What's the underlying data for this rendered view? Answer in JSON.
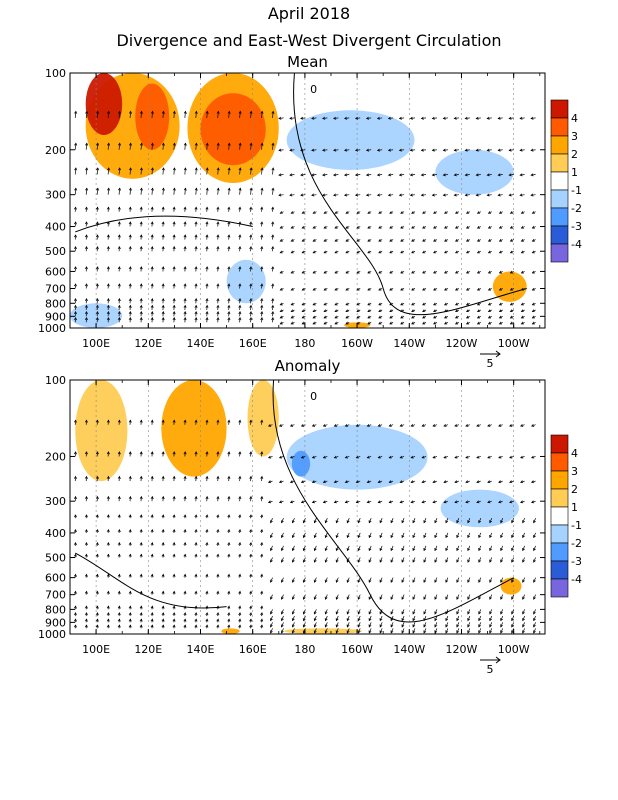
{
  "title": "April 2018",
  "subtitle": "Divergence and East-West Divergent Circulation",
  "chart_data": [
    {
      "type": "heatmap",
      "title": "Mean",
      "x_ticks": [
        "100E",
        "120E",
        "140E",
        "160E",
        "180",
        "160W",
        "140W",
        "120W",
        "100W"
      ],
      "x_tick_lon": [
        100,
        120,
        140,
        160,
        180,
        200,
        220,
        240,
        260
      ],
      "xlim_lon": [
        90,
        272
      ],
      "y_ticks": [
        "100",
        "200",
        "300",
        "400",
        "500",
        "600",
        "700",
        "800",
        "900",
        "1000"
      ],
      "y_tick_hpa": [
        100,
        200,
        300,
        400,
        500,
        600,
        700,
        800,
        900,
        1000
      ],
      "ylim_hpa": [
        100,
        1000
      ],
      "contour_label": "0",
      "vector_ref_label": "5",
      "colorbar_levels": [
        "4",
        "3",
        "2",
        "1",
        "-1",
        "-2",
        "-3",
        "-4"
      ],
      "colors": [
        "#cc1800",
        "#ff5a00",
        "#ffa500",
        "#ffcc55",
        "#ffffff",
        "#a6d2ff",
        "#4f9bff",
        "#2a5cd8",
        "#7766dd"
      ],
      "shaded_regions": [
        {
          "lon": [
            96,
            132
          ],
          "hpa": [
            100,
            260
          ],
          "level": 2
        },
        {
          "lon": [
            96,
            110
          ],
          "hpa": [
            100,
            175
          ],
          "level": 4
        },
        {
          "lon": [
            115,
            128
          ],
          "hpa": [
            110,
            200
          ],
          "level": 3
        },
        {
          "lon": [
            135,
            170
          ],
          "hpa": [
            100,
            270
          ],
          "level": 2
        },
        {
          "lon": [
            140,
            165
          ],
          "hpa": [
            120,
            230
          ],
          "level": 3
        },
        {
          "lon": [
            173,
            222
          ],
          "hpa": [
            140,
            240
          ],
          "level": -1
        },
        {
          "lon": [
            230,
            260
          ],
          "hpa": [
            200,
            300
          ],
          "level": -1
        },
        {
          "lon": [
            90,
            110
          ],
          "hpa": [
            800,
            1000
          ],
          "level": -1
        },
        {
          "lon": [
            150,
            165
          ],
          "hpa": [
            540,
            800
          ],
          "level": -1
        },
        {
          "lon": [
            252,
            265
          ],
          "hpa": [
            600,
            790
          ],
          "level": 2
        },
        {
          "lon": [
            195,
            205
          ],
          "hpa": [
            950,
            1000
          ],
          "level": 2
        }
      ]
    },
    {
      "type": "heatmap",
      "title": "Anomaly",
      "x_ticks": [
        "100E",
        "120E",
        "140E",
        "160E",
        "180",
        "160W",
        "140W",
        "120W",
        "100W"
      ],
      "x_tick_lon": [
        100,
        120,
        140,
        160,
        180,
        200,
        220,
        240,
        260
      ],
      "xlim_lon": [
        90,
        272
      ],
      "y_ticks": [
        "100",
        "200",
        "300",
        "400",
        "500",
        "600",
        "700",
        "800",
        "900",
        "1000"
      ],
      "y_tick_hpa": [
        100,
        200,
        300,
        400,
        500,
        600,
        700,
        800,
        900,
        1000
      ],
      "ylim_hpa": [
        100,
        1000
      ],
      "contour_label": "0",
      "vector_ref_label": "5",
      "colorbar_levels": [
        "4",
        "3",
        "2",
        "1",
        "-1",
        "-2",
        "-3",
        "-4"
      ],
      "colors": [
        "#cc1800",
        "#ff5a00",
        "#ffa500",
        "#ffcc55",
        "#ffffff",
        "#a6d2ff",
        "#4f9bff",
        "#2a5cd8",
        "#7766dd"
      ],
      "shaded_regions": [
        {
          "lon": [
            92,
            112
          ],
          "hpa": [
            100,
            250
          ],
          "level": 1
        },
        {
          "lon": [
            125,
            150
          ],
          "hpa": [
            100,
            240
          ],
          "level": 2
        },
        {
          "lon": [
            158,
            170
          ],
          "hpa": [
            100,
            200
          ],
          "level": 1
        },
        {
          "lon": [
            173,
            227
          ],
          "hpa": [
            150,
            270
          ],
          "level": -1
        },
        {
          "lon": [
            175,
            182
          ],
          "hpa": [
            190,
            240
          ],
          "level": -2
        },
        {
          "lon": [
            232,
            262
          ],
          "hpa": [
            270,
            380
          ],
          "level": -1
        },
        {
          "lon": [
            148,
            155
          ],
          "hpa": [
            950,
            1000
          ],
          "level": 2
        },
        {
          "lon": [
            172,
            202
          ],
          "hpa": [
            950,
            1000
          ],
          "level": 1
        },
        {
          "lon": [
            255,
            263
          ],
          "hpa": [
            600,
            700
          ],
          "level": 2
        }
      ]
    }
  ]
}
